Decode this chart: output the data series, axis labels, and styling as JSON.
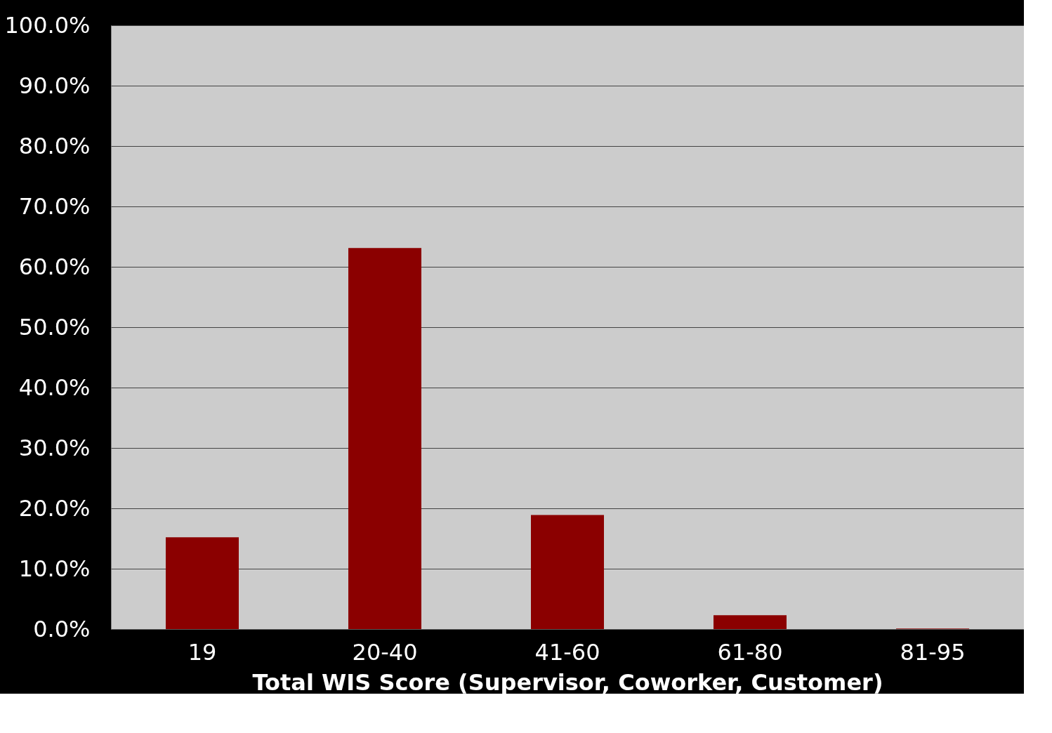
{
  "chart_data": {
    "type": "bar",
    "xlabel": "Total WIS Score (Supervisor, Coworker, Customer)",
    "categories": [
      "19",
      "20-40",
      "41-60",
      "61-80",
      "81-95"
    ],
    "values": [
      15.2,
      63.1,
      18.9,
      2.3,
      0.1
    ],
    "color": "#8b0000",
    "ylim": [
      0,
      100
    ],
    "yticks": [
      {
        "value": 0,
        "label": "0.0%"
      },
      {
        "value": 10,
        "label": "10.0%"
      },
      {
        "value": 20,
        "label": "20.0%"
      },
      {
        "value": 30,
        "label": "30.0%"
      },
      {
        "value": 40,
        "label": "40.0%"
      },
      {
        "value": 50,
        "label": "50.0%"
      },
      {
        "value": 60,
        "label": "60.0%"
      },
      {
        "value": 70,
        "label": "70.0%"
      },
      {
        "value": 80,
        "label": "80.0%"
      },
      {
        "value": 90,
        "label": "90.0%"
      },
      {
        "value": 100,
        "label": "100.0%"
      }
    ],
    "grid": "y"
  }
}
